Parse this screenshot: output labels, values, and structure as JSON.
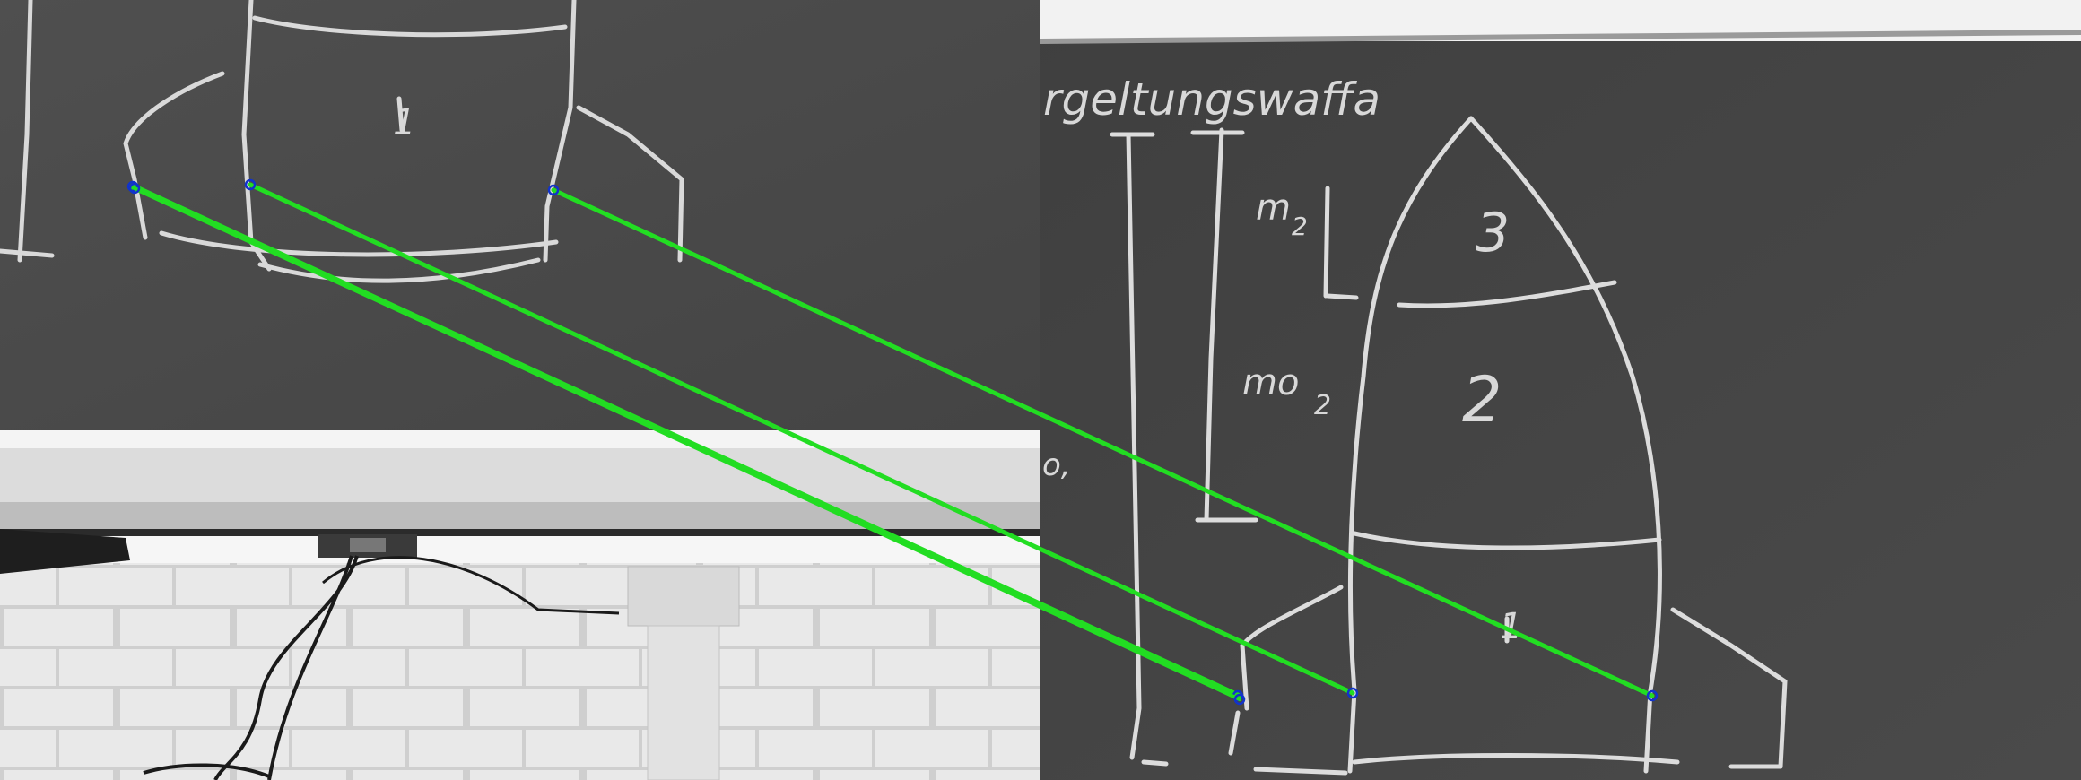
{
  "left_photo": {
    "label": "left photograph: lower part of rocket drawing on chalkboard with tray and brick wall",
    "stage_numbers": [
      "1"
    ]
  },
  "right_photo": {
    "label": "right photograph: full rocket drawing on chalkboard",
    "title_text": "rgeltungswaffa",
    "mass_labels": [
      "m",
      "2",
      "mo",
      "2"
    ],
    "stage_numbers": [
      "3",
      "2",
      "1"
    ],
    "partial_text": "o,"
  },
  "matches": {
    "color": "#22dd22",
    "endpoint_color": "#1133cc",
    "count": 4
  }
}
